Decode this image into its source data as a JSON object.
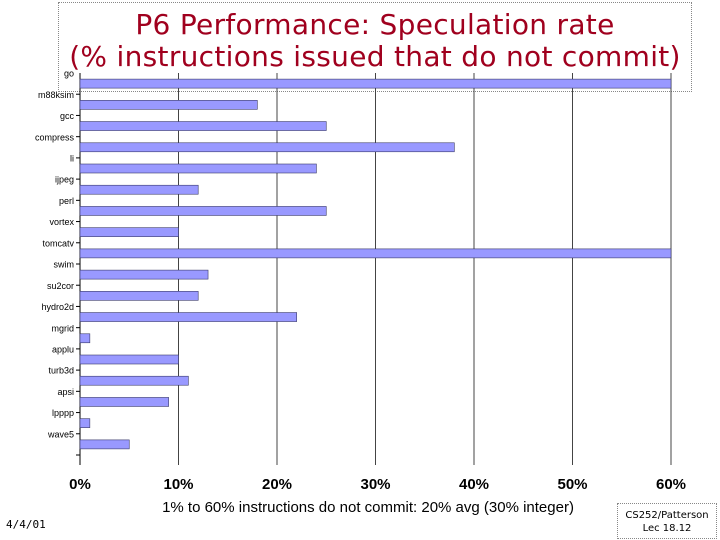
{
  "slide": {
    "title_line1": "P6 Performance: Speculation rate",
    "title_line2": "(% instructions issued that do not commit)",
    "date": "4/4/01",
    "course": "CS252/Patterson",
    "lecture": "Lec 18.12"
  },
  "chart_data": {
    "type": "bar",
    "orientation": "horizontal",
    "categories": [
      "go",
      "m88ksim",
      "gcc",
      "compress",
      "li",
      "ijpeg",
      "perl",
      "vortex",
      "tomcatv",
      "swim",
      "su2cor",
      "hydro2d",
      "mgrid",
      "applu",
      "turb3d",
      "apsi",
      "lpppp",
      "wave5"
    ],
    "values": [
      60,
      18,
      25,
      38,
      24,
      12,
      25,
      10,
      60,
      13,
      12,
      22,
      1,
      10,
      11,
      9,
      1,
      5
    ],
    "xlim": [
      0,
      60
    ],
    "xticks": [
      0,
      10,
      20,
      30,
      40,
      50,
      60
    ],
    "xtick_labels": [
      "0%",
      "10%",
      "20%",
      "30%",
      "40%",
      "50%",
      "60%"
    ],
    "xlabel": "1% to 60% instructions do not commit: 20% avg (30% integer)",
    "grid": "vertical",
    "bar_color": "#9999ff"
  }
}
